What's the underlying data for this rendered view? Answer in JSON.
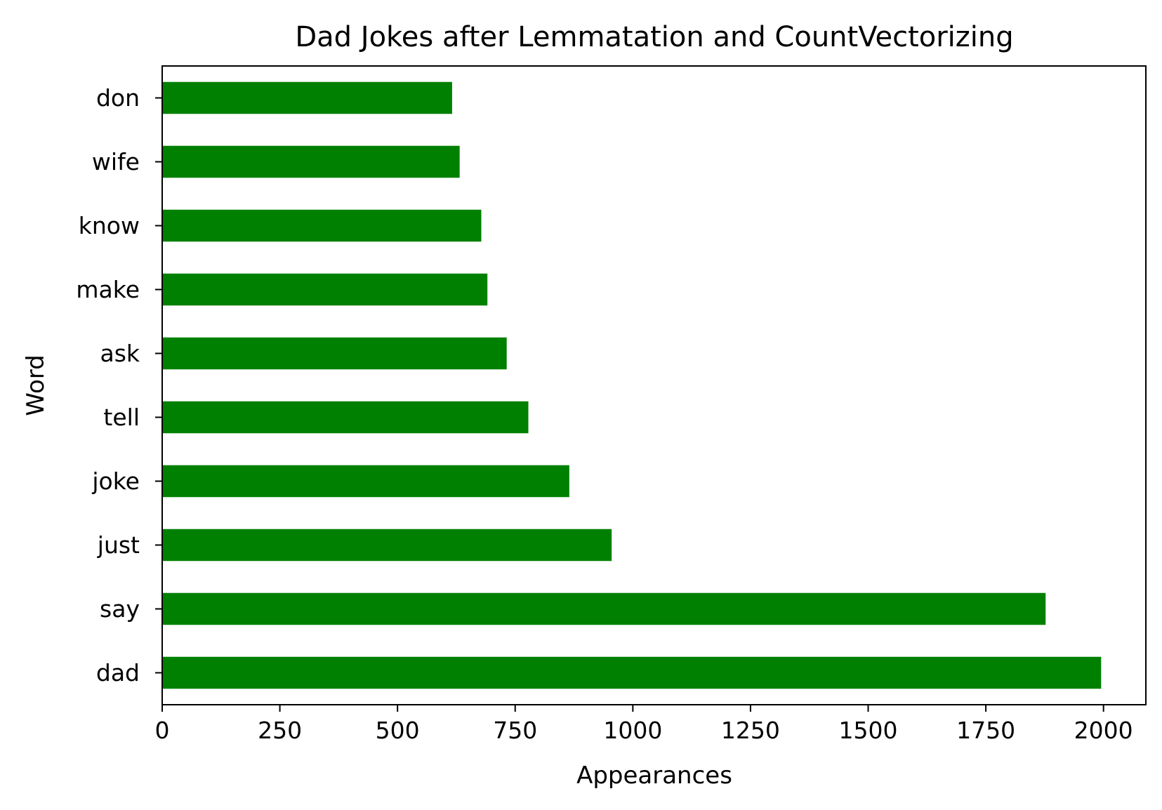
{
  "chart_data": {
    "type": "bar",
    "orientation": "horizontal",
    "title": "Dad Jokes after Lemmatation and CountVectorizing",
    "xlabel": "Appearances",
    "ylabel": "Word",
    "categories": [
      "dad",
      "say",
      "just",
      "joke",
      "tell",
      "ask",
      "make",
      "know",
      "wife",
      "don"
    ],
    "values": [
      1995,
      1877,
      955,
      865,
      778,
      732,
      691,
      678,
      632,
      616
    ],
    "xlim": [
      0,
      2090
    ],
    "xticks": [
      0,
      250,
      500,
      750,
      1000,
      1250,
      1500,
      1750,
      2000
    ],
    "xtick_labels": [
      "0",
      "250",
      "500",
      "750",
      "1000",
      "1250",
      "1500",
      "1750",
      "2000"
    ],
    "bar_color": "#008000",
    "grid": false,
    "legend": "none"
  }
}
